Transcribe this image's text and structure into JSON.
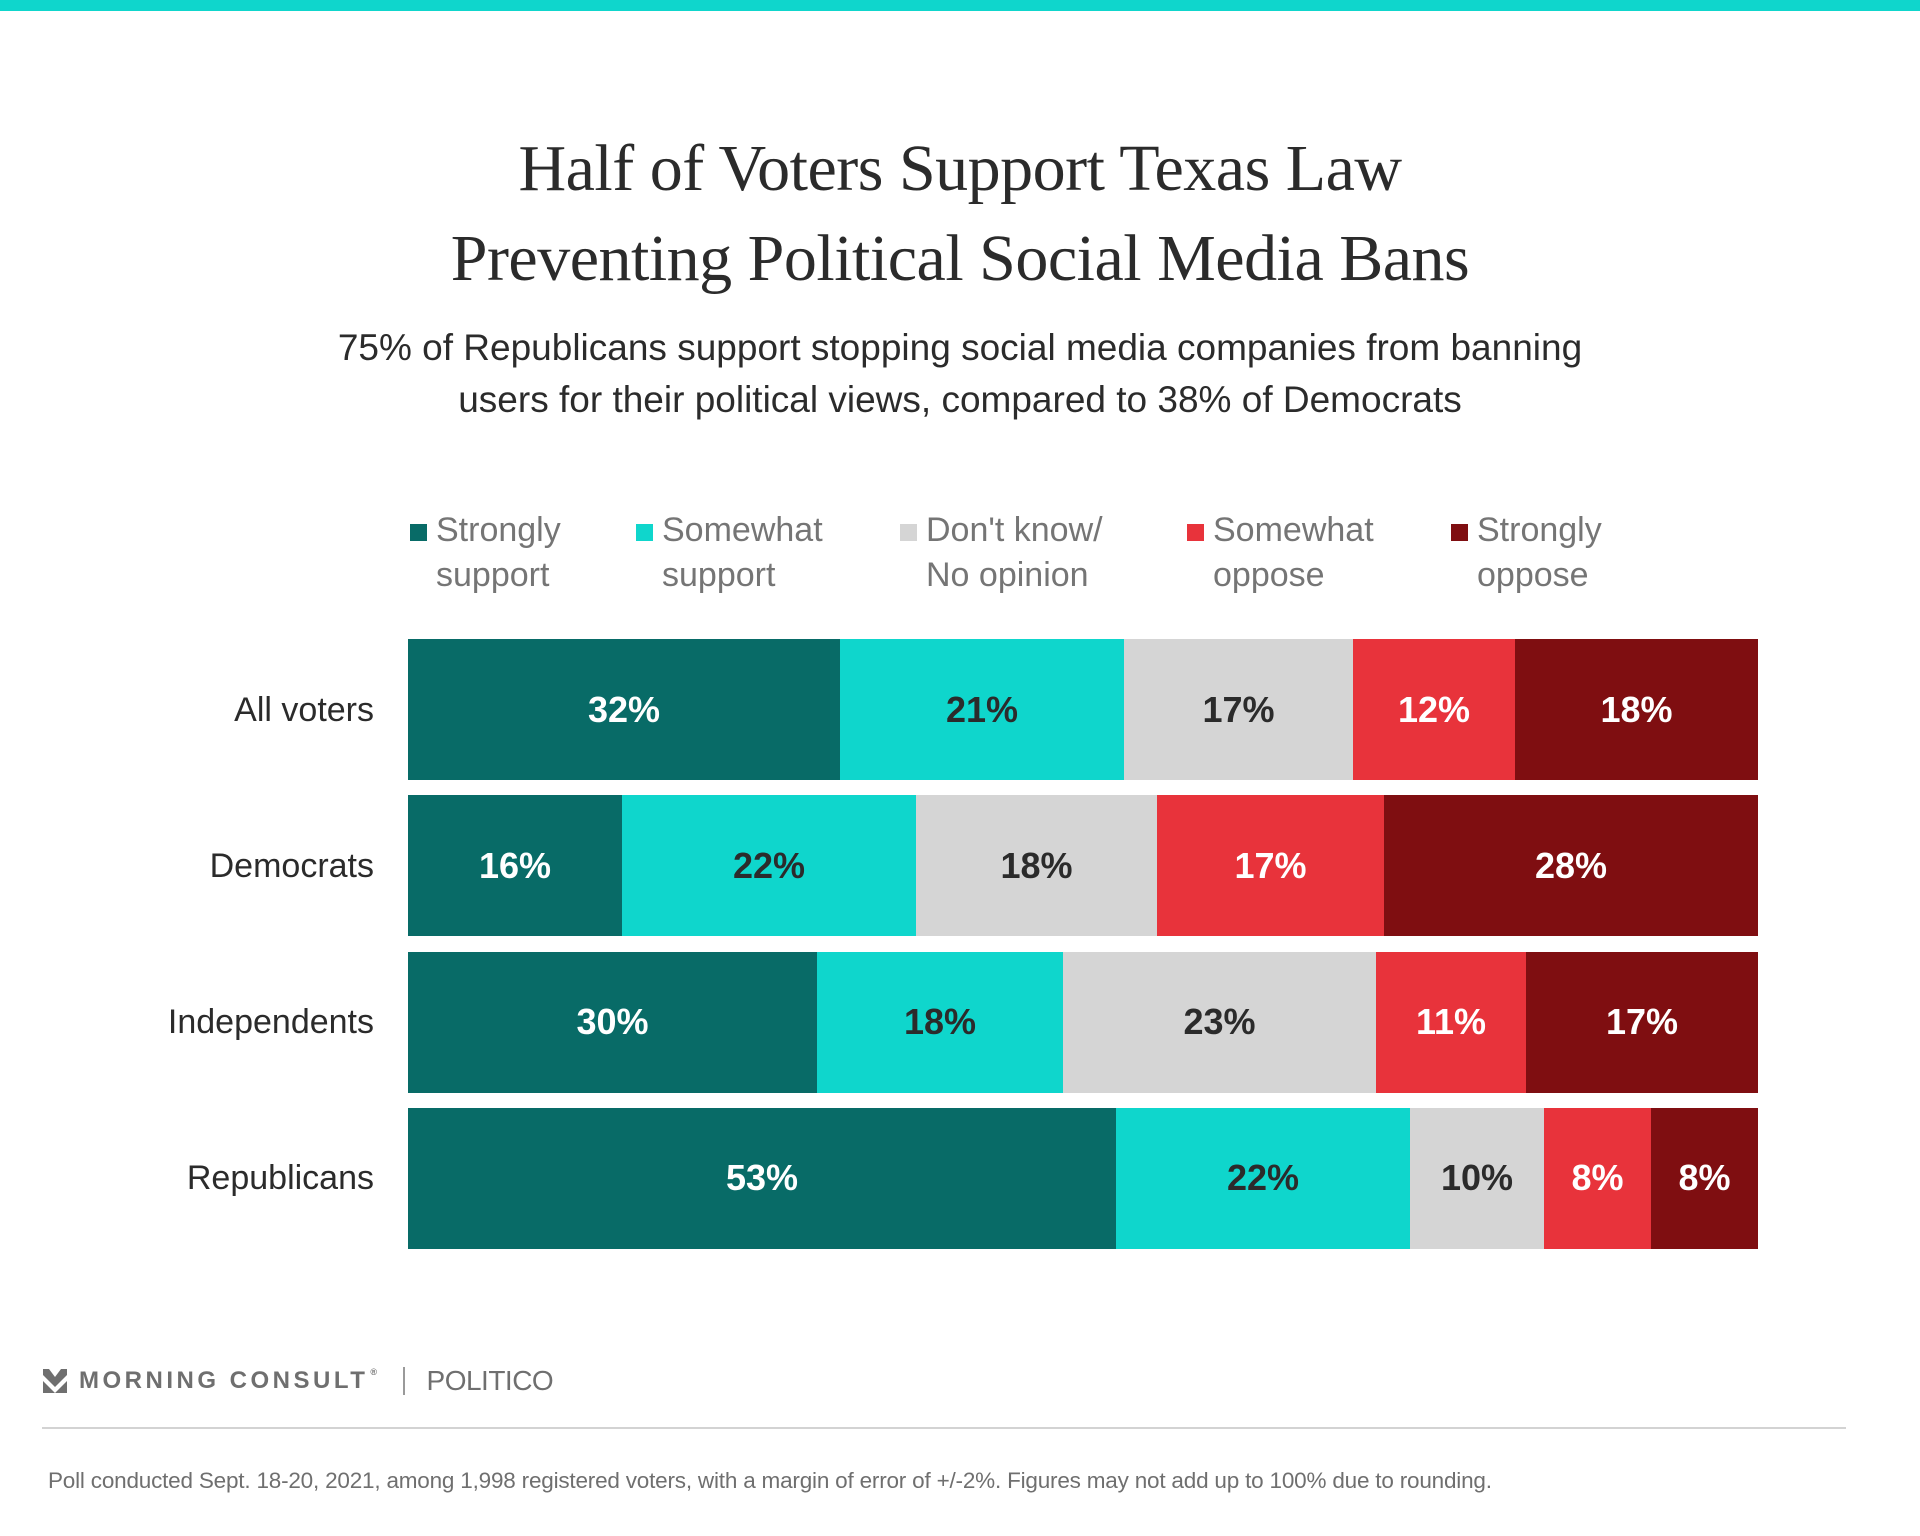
{
  "header": {
    "title_lines": [
      "Half of Voters Support Texas Law",
      "Preventing Political Social Media Bans"
    ],
    "subtitle_lines": [
      "75% of Republicans support stopping social media companies from banning",
      "users for their political views, compared to 38% of Democrats"
    ]
  },
  "colors": {
    "accent_top": "#0fd6cc",
    "strongly_support": "#086b67",
    "somewhat_support": "#0fd6cc",
    "dont_know": "#d5d5d5",
    "somewhat_oppose": "#e8333b",
    "strongly_oppose": "#7f0e11",
    "label_light": "#ffffff",
    "label_dark": "#2b2b2b"
  },
  "chart_data": {
    "type": "bar",
    "orientation": "horizontal",
    "stacked": true,
    "normalized": true,
    "title": "Half of Voters Support Texas Law Preventing Political Social Media Bans",
    "subtitle": "75% of Republicans support stopping social media companies from banning users for their political views, compared to 38% of Democrats",
    "xlabel": "",
    "ylabel": "",
    "legend_position": "top",
    "grid": false,
    "categories": [
      "All voters",
      "Democrats",
      "Independents",
      "Republicans"
    ],
    "series": [
      {
        "name": "Strongly support",
        "legend_lines": [
          "Strongly",
          "support"
        ],
        "color_key": "strongly_support",
        "label_tone": "light",
        "values": [
          32,
          16,
          30,
          53
        ]
      },
      {
        "name": "Somewhat support",
        "legend_lines": [
          "Somewhat",
          "support"
        ],
        "color_key": "somewhat_support",
        "label_tone": "dark",
        "values": [
          21,
          22,
          18,
          22
        ]
      },
      {
        "name": "Don't know/ No opinion",
        "legend_lines": [
          "Don't know/",
          "No opinion"
        ],
        "color_key": "dont_know",
        "label_tone": "dark",
        "values": [
          17,
          18,
          23,
          10
        ]
      },
      {
        "name": "Somewhat oppose",
        "legend_lines": [
          "Somewhat",
          "oppose"
        ],
        "color_key": "somewhat_oppose",
        "label_tone": "light",
        "values": [
          12,
          17,
          11,
          8
        ]
      },
      {
        "name": "Strongly oppose",
        "legend_lines": [
          "Strongly",
          "oppose"
        ],
        "color_key": "strongly_oppose",
        "label_tone": "light",
        "values": [
          18,
          28,
          17,
          8
        ]
      }
    ],
    "value_suffix": "%"
  },
  "footer": {
    "brand": "MORNING CONSULT",
    "brand_mark": "®",
    "partner": "POLITICO",
    "note": "Poll conducted Sept. 18-20, 2021, among 1,998 registered voters, with a margin of error of +/-2%. Figures may not add up to 100% due to rounding."
  }
}
